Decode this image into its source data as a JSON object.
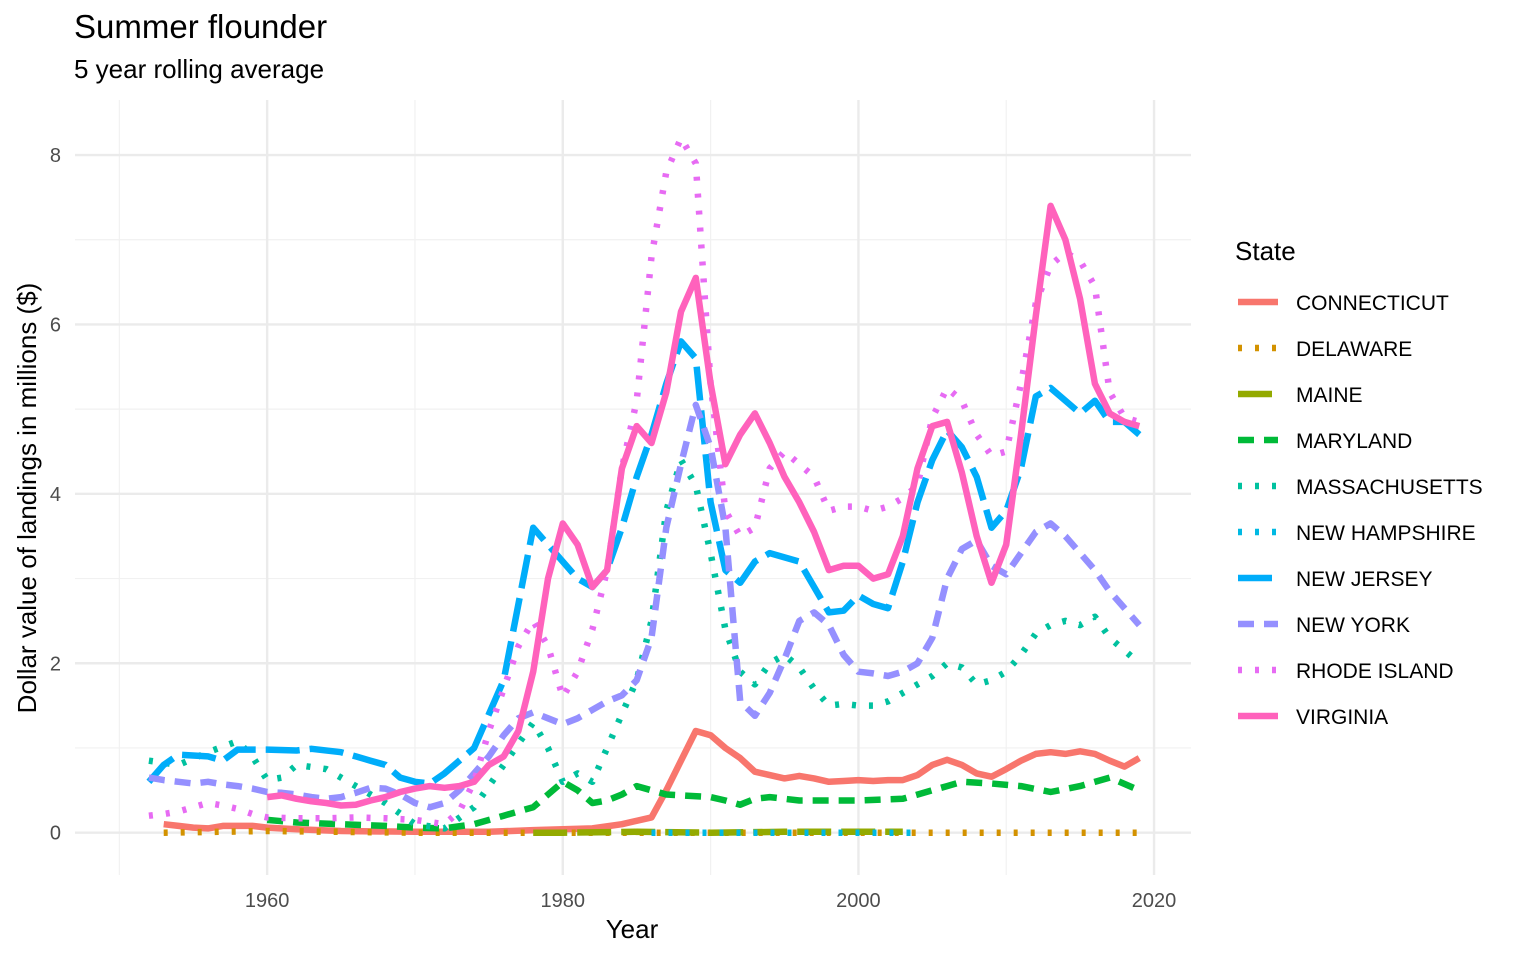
{
  "chart_data": {
    "type": "line",
    "title": "Summer flounder",
    "subtitle": "5 year rolling average",
    "xlabel": "Year",
    "ylabel": "Dollar value of landings in millions ($)",
    "xlim": [
      1947,
      2022.5
    ],
    "ylim": [
      -0.5,
      8.65
    ],
    "x_ticks": [
      1960,
      1980,
      2000,
      2020
    ],
    "y_ticks": [
      0,
      2,
      4,
      6,
      8
    ],
    "grid": true,
    "legend": {
      "title": "State",
      "position": "right"
    },
    "series": [
      {
        "name": "CONNECTICUT",
        "color": "#F8766D",
        "dash": "solid",
        "x": [
          1953,
          1954,
          1955,
          1956,
          1957,
          1958,
          1959,
          1960,
          1962,
          1965,
          1970,
          1975,
          1978,
          1980,
          1982,
          1984,
          1986,
          1987,
          1988,
          1989,
          1990,
          1991,
          1992,
          1993,
          1994,
          1995,
          1996,
          1997,
          1998,
          1999,
          2000,
          2001,
          2002,
          2003,
          2004,
          2005,
          2006,
          2007,
          2008,
          2009,
          2010,
          2011,
          2012,
          2013,
          2014,
          2015,
          2016,
          2017,
          2018,
          2019
        ],
        "y": [
          0.1,
          0.08,
          0.06,
          0.05,
          0.08,
          0.08,
          0.08,
          0.06,
          0.04,
          0.02,
          0.01,
          0.01,
          0.03,
          0.04,
          0.05,
          0.1,
          0.18,
          0.5,
          0.85,
          1.2,
          1.15,
          1.0,
          0.88,
          0.72,
          0.68,
          0.64,
          0.67,
          0.64,
          0.6,
          0.61,
          0.62,
          0.61,
          0.62,
          0.62,
          0.68,
          0.8,
          0.86,
          0.8,
          0.7,
          0.66,
          0.75,
          0.85,
          0.93,
          0.95,
          0.93,
          0.96,
          0.93,
          0.85,
          0.78,
          0.88
        ]
      },
      {
        "name": "DELAWARE",
        "color": "#D39200",
        "dash": "dotted",
        "x": [
          1953,
          1960,
          1970,
          1980,
          1990,
          2000,
          2010,
          2019
        ],
        "y": [
          0.0,
          0.02,
          0.0,
          0.0,
          0.0,
          0.0,
          0.0,
          0.0
        ]
      },
      {
        "name": "MAINE",
        "color": "#93AA00",
        "dash": "longdash",
        "x": [
          1978,
          1980,
          1985,
          1990,
          1995,
          2000,
          2003
        ],
        "y": [
          0.0,
          0.0,
          0.01,
          0.0,
          0.01,
          0.01,
          0.01
        ]
      },
      {
        "name": "MARYLAND",
        "color": "#00BA38",
        "dash": "dashed",
        "x": [
          1960,
          1962,
          1965,
          1968,
          1970,
          1972,
          1974,
          1976,
          1978,
          1980,
          1981,
          1982,
          1983,
          1984,
          1985,
          1987,
          1990,
          1991,
          1992,
          1993,
          1994,
          1995,
          1996,
          1998,
          2000,
          2003,
          2005,
          2006,
          2007,
          2009,
          2011,
          2013,
          2015,
          2017,
          2019
        ],
        "y": [
          0.15,
          0.12,
          0.1,
          0.08,
          0.06,
          0.05,
          0.1,
          0.2,
          0.3,
          0.6,
          0.5,
          0.35,
          0.38,
          0.45,
          0.55,
          0.45,
          0.42,
          0.38,
          0.33,
          0.4,
          0.42,
          0.4,
          0.38,
          0.38,
          0.38,
          0.4,
          0.5,
          0.55,
          0.6,
          0.58,
          0.55,
          0.48,
          0.55,
          0.65,
          0.5
        ]
      },
      {
        "name": "MASSACHUSETTS",
        "color": "#00C19F",
        "dash": "dotted",
        "x": [
          1952,
          1954,
          1956,
          1958,
          1959,
          1960,
          1961,
          1962,
          1964,
          1966,
          1968,
          1970,
          1972,
          1974,
          1976,
          1978,
          1979,
          1980,
          1981,
          1982,
          1984,
          1985,
          1986,
          1987,
          1988,
          1989,
          1990,
          1991,
          1992,
          1993,
          1994,
          1995,
          1996,
          1997,
          1998,
          1999,
          2000,
          2001,
          2002,
          2003,
          2004,
          2005,
          2006,
          2007,
          2008,
          2009,
          2010,
          2011,
          2012,
          2013,
          2014,
          2015,
          2016,
          2017,
          2018,
          2019
        ],
        "y": [
          0.85,
          0.8,
          0.95,
          1.08,
          0.9,
          0.62,
          0.65,
          0.8,
          0.75,
          0.55,
          0.35,
          0.1,
          0.05,
          0.3,
          0.8,
          1.3,
          1.0,
          0.6,
          0.7,
          0.6,
          1.4,
          1.8,
          2.5,
          3.8,
          4.4,
          4.1,
          3.3,
          2.4,
          1.9,
          1.75,
          2.0,
          2.1,
          1.95,
          1.7,
          1.5,
          1.52,
          1.5,
          1.5,
          1.55,
          1.65,
          1.75,
          1.85,
          2.0,
          1.95,
          1.75,
          1.8,
          1.9,
          2.1,
          2.35,
          2.45,
          2.5,
          2.45,
          2.55,
          2.3,
          2.15,
          2.0
        ]
      },
      {
        "name": "NEW HAMPSHIRE",
        "color": "#00B9E3",
        "dash": "dotted",
        "x": [
          1986,
          1988,
          1990,
          1993,
          1996,
          1999,
          2001,
          2004
        ],
        "y": [
          0.0,
          0.0,
          0.0,
          0.0,
          0.0,
          0.0,
          0.0,
          0.0
        ]
      },
      {
        "name": "NEW JERSEY",
        "color": "#00ADFA",
        "dash": "longdash",
        "x": [
          1952,
          1953,
          1954,
          1956,
          1957,
          1958,
          1960,
          1962,
          1963,
          1965,
          1966,
          1967,
          1968,
          1969,
          1970,
          1971,
          1972,
          1974,
          1976,
          1978,
          1979,
          1980,
          1981,
          1982,
          1983,
          1984,
          1985,
          1986,
          1987,
          1988,
          1989,
          1990,
          1991,
          1992,
          1993,
          1994,
          1995,
          1996,
          1997,
          1998,
          1999,
          2000,
          2001,
          2002,
          2003,
          2004,
          2005,
          2006,
          2007,
          2008,
          2009,
          2010,
          2011,
          2012,
          2013,
          2014,
          2015,
          2016,
          2017,
          2018,
          2019
        ],
        "y": [
          0.6,
          0.8,
          0.92,
          0.9,
          0.85,
          0.98,
          0.98,
          0.97,
          0.99,
          0.95,
          0.9,
          0.85,
          0.8,
          0.65,
          0.6,
          0.58,
          0.7,
          1.0,
          1.8,
          3.6,
          3.4,
          3.2,
          3.0,
          2.9,
          3.1,
          3.6,
          4.2,
          4.7,
          5.3,
          5.8,
          5.6,
          3.9,
          3.1,
          2.95,
          3.2,
          3.3,
          3.25,
          3.2,
          2.9,
          2.6,
          2.62,
          2.8,
          2.7,
          2.65,
          3.2,
          3.9,
          4.4,
          4.75,
          4.55,
          4.2,
          3.6,
          3.8,
          4.3,
          5.15,
          5.25,
          5.1,
          4.95,
          5.1,
          4.85,
          4.85,
          4.7
        ]
      },
      {
        "name": "NEW YORK",
        "color": "#9590FF",
        "dash": "dashed",
        "x": [
          1952,
          1953,
          1954,
          1955,
          1956,
          1957,
          1958,
          1959,
          1960,
          1961,
          1962,
          1963,
          1964,
          1965,
          1966,
          1967,
          1968,
          1969,
          1970,
          1971,
          1972,
          1973,
          1974,
          1975,
          1976,
          1977,
          1978,
          1979,
          1980,
          1981,
          1982,
          1983,
          1984,
          1985,
          1986,
          1987,
          1988,
          1989,
          1990,
          1991,
          1992,
          1993,
          1994,
          1995,
          1996,
          1997,
          1998,
          1999,
          2000,
          2001,
          2002,
          2003,
          2004,
          2005,
          2006,
          2007,
          2008,
          2009,
          2010,
          2011,
          2012,
          2013,
          2014,
          2015,
          2016,
          2017,
          2018,
          2019
        ],
        "y": [
          0.65,
          0.62,
          0.6,
          0.58,
          0.6,
          0.57,
          0.55,
          0.52,
          0.48,
          0.47,
          0.45,
          0.42,
          0.4,
          0.42,
          0.47,
          0.53,
          0.52,
          0.45,
          0.35,
          0.3,
          0.35,
          0.5,
          0.7,
          0.9,
          1.15,
          1.35,
          1.42,
          1.35,
          1.28,
          1.35,
          1.45,
          1.55,
          1.62,
          1.8,
          2.3,
          3.6,
          4.35,
          5.05,
          4.55,
          3.6,
          1.55,
          1.38,
          1.65,
          2.05,
          2.5,
          2.6,
          2.45,
          2.1,
          1.9,
          1.88,
          1.85,
          1.9,
          2.0,
          2.3,
          3.0,
          3.35,
          3.45,
          3.15,
          3.05,
          3.3,
          3.55,
          3.65,
          3.5,
          3.3,
          3.1,
          2.85,
          2.65,
          2.45
        ]
      },
      {
        "name": "RHODE ISLAND",
        "color": "#E76BF3",
        "dash": "dotted",
        "x": [
          1952,
          1953,
          1954,
          1955,
          1956,
          1957,
          1958,
          1959,
          1960,
          1962,
          1964,
          1966,
          1968,
          1970,
          1972,
          1973,
          1974,
          1975,
          1976,
          1977,
          1978,
          1979,
          1980,
          1981,
          1982,
          1983,
          1984,
          1985,
          1986,
          1987,
          1988,
          1989,
          1990,
          1991,
          1992,
          1993,
          1994,
          1995,
          1996,
          1997,
          1998,
          1999,
          2000,
          2001,
          2002,
          2003,
          2004,
          2005,
          2006,
          2007,
          2008,
          2009,
          2010,
          2011,
          2012,
          2013,
          2014,
          2015,
          2016,
          2017,
          2018,
          2019
        ],
        "y": [
          0.2,
          0.22,
          0.25,
          0.3,
          0.35,
          0.32,
          0.28,
          0.22,
          0.18,
          0.17,
          0.17,
          0.18,
          0.17,
          0.15,
          0.1,
          0.25,
          0.6,
          1.2,
          1.7,
          2.2,
          2.5,
          2.2,
          1.6,
          1.9,
          2.4,
          3.1,
          4.3,
          5.1,
          6.8,
          7.8,
          8.2,
          7.9,
          5.3,
          3.8,
          3.5,
          3.6,
          4.3,
          4.5,
          4.35,
          4.2,
          3.8,
          3.85,
          3.85,
          3.8,
          3.85,
          3.95,
          4.1,
          4.9,
          5.25,
          5.1,
          4.7,
          4.45,
          4.5,
          5.3,
          6.25,
          6.7,
          6.85,
          6.75,
          6.45,
          5.2,
          4.9,
          4.85
        ]
      },
      {
        "name": "VIRGINIA",
        "color": "#FF62BC",
        "dash": "solid",
        "x": [
          1960,
          1961,
          1962,
          1963,
          1964,
          1965,
          1966,
          1967,
          1968,
          1969,
          1970,
          1971,
          1972,
          1973,
          1974,
          1975,
          1976,
          1977,
          1978,
          1979,
          1980,
          1981,
          1982,
          1983,
          1984,
          1985,
          1986,
          1987,
          1988,
          1989,
          1990,
          1991,
          1992,
          1993,
          1994,
          1995,
          1996,
          1997,
          1998,
          1999,
          2000,
          2001,
          2002,
          2003,
          2004,
          2005,
          2006,
          2007,
          2008,
          2009,
          2010,
          2011,
          2012,
          2013,
          2014,
          2015,
          2016,
          2017,
          2018,
          2019
        ],
        "y": [
          0.42,
          0.44,
          0.4,
          0.37,
          0.35,
          0.32,
          0.33,
          0.38,
          0.42,
          0.48,
          0.52,
          0.55,
          0.53,
          0.55,
          0.6,
          0.8,
          0.9,
          1.2,
          1.9,
          3.0,
          3.65,
          3.4,
          2.9,
          3.1,
          4.3,
          4.8,
          4.6,
          5.2,
          6.15,
          6.55,
          5.3,
          4.35,
          4.7,
          4.95,
          4.6,
          4.2,
          3.9,
          3.55,
          3.1,
          3.15,
          3.15,
          3.0,
          3.05,
          3.5,
          4.3,
          4.8,
          4.85,
          4.25,
          3.5,
          2.95,
          3.4,
          4.7,
          6.1,
          7.4,
          7.0,
          6.3,
          5.3,
          4.95,
          4.85,
          4.8
        ]
      }
    ]
  }
}
